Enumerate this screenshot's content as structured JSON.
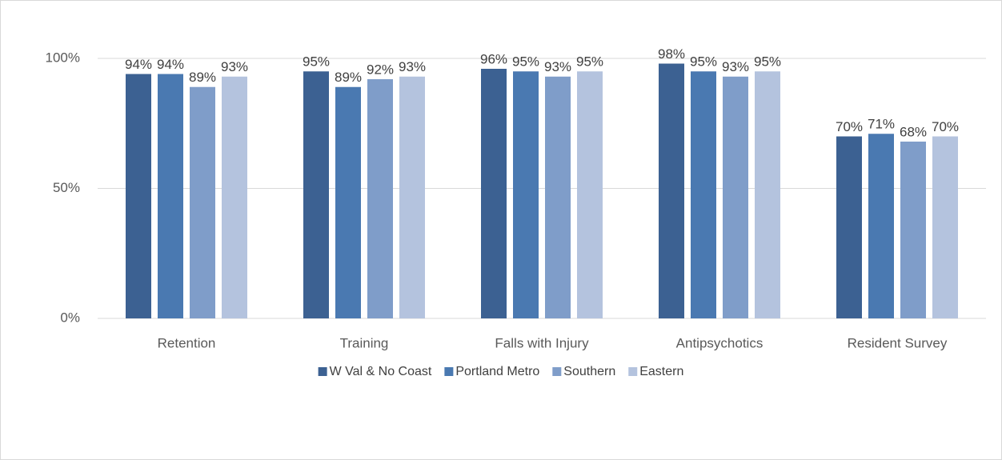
{
  "chart_data": {
    "type": "bar",
    "categories": [
      "Retention",
      "Training",
      "Falls with Injury",
      "Antipsychotics",
      "Resident Survey"
    ],
    "series": [
      {
        "name": "W Val & No Coast",
        "color": "#3c6192",
        "values": [
          94,
          95,
          96,
          98,
          70
        ],
        "value_labels": [
          "94%",
          "95%",
          "96%",
          "98%",
          "70%"
        ]
      },
      {
        "name": "Portland Metro",
        "color": "#4a79b1",
        "values": [
          94,
          89,
          95,
          95,
          71
        ],
        "value_labels": [
          "94%",
          "89%",
          "95%",
          "95%",
          "71%"
        ]
      },
      {
        "name": "Southern",
        "color": "#7f9dc9",
        "values": [
          89,
          92,
          93,
          93,
          68
        ],
        "value_labels": [
          "89%",
          "92%",
          "93%",
          "93%",
          "68%"
        ]
      },
      {
        "name": "Eastern",
        "color": "#b4c3de",
        "values": [
          93,
          93,
          95,
          95,
          70
        ],
        "value_labels": [
          "93%",
          "93%",
          "95%",
          "95%",
          "70%"
        ]
      }
    ],
    "ylim": [
      0,
      100
    ],
    "yticks": [
      {
        "value": 0,
        "label": "0%"
      },
      {
        "value": 50,
        "label": "50%"
      },
      {
        "value": 100,
        "label": "100%"
      }
    ],
    "grid": true,
    "legend": "bottom"
  }
}
